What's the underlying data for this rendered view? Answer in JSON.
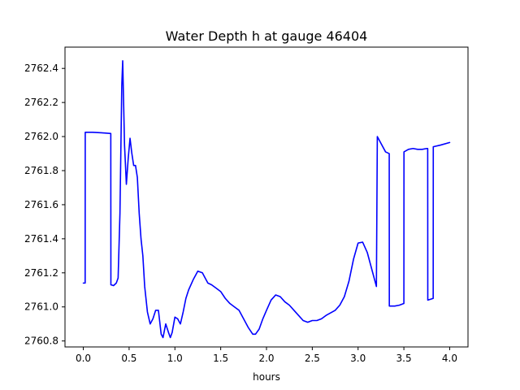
{
  "chart_data": {
    "type": "line",
    "title": "Water Depth h at gauge 46404",
    "xlabel": "hours",
    "ylabel": "",
    "xlim": [
      -0.2,
      4.2
    ],
    "ylim": [
      2760.765,
      2762.525
    ],
    "xticks": [
      0.0,
      0.5,
      1.0,
      1.5,
      2.0,
      2.5,
      3.0,
      3.5,
      4.0
    ],
    "xtick_labels": [
      "0.0",
      "0.5",
      "1.0",
      "1.5",
      "2.0",
      "2.5",
      "3.0",
      "3.5",
      "4.0"
    ],
    "yticks": [
      2760.8,
      2761.0,
      2761.2,
      2761.4,
      2761.6,
      2761.8,
      2762.0,
      2762.2,
      2762.4
    ],
    "ytick_labels": [
      "2760.8",
      "2761.0",
      "2761.2",
      "2761.4",
      "2761.6",
      "2761.8",
      "2762.0",
      "2762.2",
      "2762.4"
    ],
    "grid": false,
    "series": [
      {
        "color": "#0000ff",
        "x": [
          0.0,
          0.02,
          0.021,
          0.1,
          0.2,
          0.3,
          0.301,
          0.33,
          0.36,
          0.38,
          0.4,
          0.42,
          0.43,
          0.45,
          0.47,
          0.49,
          0.51,
          0.53,
          0.55,
          0.57,
          0.59,
          0.61,
          0.63,
          0.65,
          0.67,
          0.7,
          0.73,
          0.76,
          0.79,
          0.82,
          0.85,
          0.87,
          0.9,
          0.93,
          0.95,
          0.97,
          1.0,
          1.03,
          1.06,
          1.09,
          1.12,
          1.15,
          1.2,
          1.25,
          1.3,
          1.33,
          1.36,
          1.4,
          1.45,
          1.5,
          1.55,
          1.6,
          1.65,
          1.7,
          1.75,
          1.8,
          1.85,
          1.88,
          1.92,
          1.96,
          2.0,
          2.05,
          2.1,
          2.15,
          2.2,
          2.25,
          2.3,
          2.35,
          2.4,
          2.45,
          2.5,
          2.55,
          2.6,
          2.65,
          2.7,
          2.75,
          2.8,
          2.85,
          2.9,
          2.95,
          3.0,
          3.05,
          3.1,
          3.15,
          3.2,
          3.21,
          3.25,
          3.3,
          3.34,
          3.341,
          3.4,
          3.45,
          3.5,
          3.501,
          3.55,
          3.6,
          3.65,
          3.7,
          3.75,
          3.76,
          3.761,
          3.82,
          3.821,
          3.9,
          4.0
        ],
        "y": [
          2761.14,
          2761.14,
          2762.025,
          2762.025,
          2762.022,
          2762.018,
          2761.13,
          2761.125,
          2761.14,
          2761.17,
          2761.55,
          2762.3,
          2762.445,
          2761.95,
          2761.72,
          2761.87,
          2761.99,
          2761.9,
          2761.83,
          2761.83,
          2761.76,
          2761.55,
          2761.4,
          2761.3,
          2761.12,
          2760.97,
          2760.9,
          2760.93,
          2760.98,
          2760.98,
          2760.84,
          2760.82,
          2760.9,
          2760.85,
          2760.82,
          2760.85,
          2760.94,
          2760.93,
          2760.9,
          2760.97,
          2761.05,
          2761.1,
          2761.16,
          2761.21,
          2761.2,
          2761.17,
          2761.14,
          2761.13,
          2761.11,
          2761.09,
          2761.05,
          2761.02,
          2761.0,
          2760.98,
          2760.93,
          2760.88,
          2760.84,
          2760.84,
          2760.87,
          2760.93,
          2760.98,
          2761.04,
          2761.07,
          2761.06,
          2761.03,
          2761.01,
          2760.98,
          2760.95,
          2760.92,
          2760.91,
          2760.92,
          2760.92,
          2760.93,
          2760.95,
          2760.965,
          2760.98,
          2761.01,
          2761.06,
          2761.15,
          2761.28,
          2761.375,
          2761.38,
          2761.32,
          2761.22,
          2761.12,
          2762.0,
          2761.96,
          2761.91,
          2761.9,
          2761.005,
          2761.005,
          2761.01,
          2761.02,
          2761.91,
          2761.925,
          2761.93,
          2761.925,
          2761.925,
          2761.93,
          2761.93,
          2761.04,
          2761.05,
          2761.94,
          2761.95,
          2761.965
        ]
      }
    ]
  }
}
